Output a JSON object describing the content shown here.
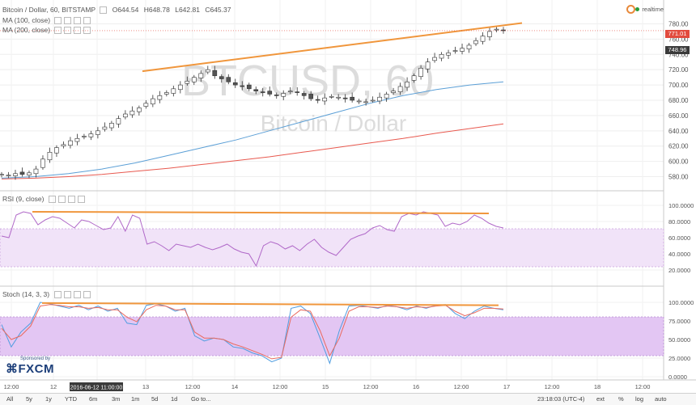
{
  "header": {
    "symbol": "Bitcoin / Dollar, 60, BITSTAMP",
    "o_label": "O",
    "o_value": "644.54",
    "h_label": "H",
    "h_value": "648.78",
    "l_label": "L",
    "l_value": "642.81",
    "c_label": "C",
    "c_value": "645.37",
    "realtime": "realtime"
  },
  "studies": {
    "ma100": "MA (100, close)",
    "ma200": "MA (200, close)",
    "rsi": "RSI (9, close)",
    "stoch": "Stoch (14, 3, 3)"
  },
  "watermark": {
    "line1": "BTCUSD, 60",
    "line2": "Bitcoin / Dollar"
  },
  "price_tags": {
    "last": "771.01",
    "ma": "748.96"
  },
  "price_axis": [
    "780.00",
    "760.00",
    "740.00",
    "720.00",
    "700.00",
    "680.00",
    "660.00",
    "640.00",
    "620.00",
    "600.00",
    "580.00"
  ],
  "rsi_axis": [
    "100.0000",
    "80.0000",
    "60.0000",
    "40.0000",
    "20.0000"
  ],
  "stoch_axis": [
    "100.0000",
    "75.0000",
    "50.0000",
    "25.0000",
    "0.0000"
  ],
  "time_axis": [
    "12:00",
    "12",
    "2016-06-12 11:00:00",
    "13",
    "12:00",
    "14",
    "12:00",
    "15",
    "12:00",
    "16",
    "12:00",
    "17",
    "12:00",
    "18",
    "12:00"
  ],
  "sponsor": {
    "line1": "Sponsored by",
    "line2": "FXCM"
  },
  "bottom": {
    "ranges": [
      "All",
      "5y",
      "1y",
      "YTD",
      "6m",
      "3m",
      "1m",
      "5d",
      "1d",
      "Go to..."
    ],
    "time": "23:18:03 (UTC-4)",
    "ext": "ext",
    "pct": "%",
    "log": "log",
    "auto": "auto"
  },
  "colors": {
    "trend": "#f0963c",
    "ma100": "#5b9fd6",
    "ma200": "#e8594f",
    "rsi": "#b068c8",
    "stoch_k": "#4f9de0",
    "stoch_d": "#ea6a5e",
    "band": "#e4c8f2",
    "up": "#2f8f63",
    "down": "#c44a3e"
  },
  "chart_data": [
    {
      "type": "candlestick",
      "title": "Bitcoin / Dollar, 60, BITSTAMP",
      "x_ticks": [
        "12:00",
        "12",
        "13",
        "12:00",
        "14",
        "12:00",
        "15",
        "12:00",
        "16",
        "12:00",
        "17",
        "12:00",
        "18",
        "12:00"
      ],
      "ylim": [
        570,
        790
      ],
      "close_path": [
        583,
        582,
        584,
        583,
        585,
        590,
        603,
        612,
        618,
        622,
        627,
        630,
        633,
        636,
        640,
        645,
        650,
        656,
        662,
        666,
        670,
        676,
        682,
        686,
        690,
        695,
        700,
        705,
        710,
        715,
        720,
        712,
        708,
        704,
        700,
        698,
        695,
        692,
        690,
        688,
        686,
        689,
        692,
        690,
        686,
        682,
        680,
        683,
        685,
        684,
        682,
        680,
        679,
        678,
        680,
        684,
        688,
        692,
        698,
        704,
        712,
        722,
        730,
        736,
        740,
        742,
        745,
        748,
        752,
        758,
        764,
        770,
        773,
        771
      ],
      "resistance_line": {
        "from": 718,
        "to": 781
      },
      "ma100_path": [
        578,
        580,
        584,
        590,
        598,
        608,
        618,
        628,
        640,
        652,
        664,
        676,
        686,
        694,
        700,
        704
      ],
      "ma200_path": [
        577,
        578,
        580,
        583,
        587,
        591,
        596,
        601,
        606,
        612,
        618,
        624,
        630,
        637,
        643,
        649
      ],
      "current_price": 771.01
    },
    {
      "type": "line",
      "title": "RSI (9, close)",
      "ylim": [
        0,
        100
      ],
      "band": [
        30,
        70
      ],
      "values": [
        62,
        60,
        88,
        92,
        90,
        76,
        82,
        86,
        84,
        78,
        72,
        82,
        80,
        75,
        70,
        72,
        86,
        68,
        88,
        84,
        52,
        55,
        50,
        44,
        52,
        50,
        48,
        52,
        48,
        45,
        48,
        52,
        46,
        42,
        40,
        25,
        50,
        55,
        52,
        46,
        50,
        44,
        52,
        58,
        48,
        42,
        38,
        48,
        58,
        62,
        65,
        72,
        75,
        70,
        68,
        86,
        90,
        88,
        92,
        90,
        88,
        74,
        78,
        76,
        80,
        88,
        84,
        78,
        74,
        72
      ]
    },
    {
      "type": "line",
      "title": "Stoch (14, 3, 3)",
      "ylim": [
        0,
        100
      ],
      "band": [
        20,
        80
      ],
      "series": [
        {
          "name": "%K",
          "values": [
            70,
            40,
            60,
            72,
            100,
            98,
            95,
            92,
            96,
            90,
            95,
            88,
            92,
            72,
            70,
            96,
            98,
            95,
            88,
            92,
            55,
            48,
            52,
            50,
            40,
            38,
            32,
            28,
            20,
            25,
            92,
            95,
            85,
            52,
            18,
            62,
            95,
            96,
            94,
            92,
            96,
            94,
            90,
            95,
            92,
            96,
            97,
            85,
            78,
            88,
            95,
            92,
            90
          ]
        },
        {
          "name": "%D",
          "values": [
            65,
            50,
            55,
            68,
            95,
            97,
            96,
            94,
            94,
            92,
            93,
            90,
            90,
            80,
            74,
            90,
            96,
            95,
            90,
            90,
            60,
            52,
            52,
            50,
            44,
            40,
            35,
            30,
            24,
            26,
            80,
            90,
            88,
            62,
            28,
            52,
            88,
            94,
            94,
            93,
            95,
            94,
            92,
            94,
            93,
            95,
            96,
            88,
            82,
            86,
            92,
            92,
            91
          ]
        }
      ],
      "resistance_line": {
        "from": 99,
        "to": 96
      }
    }
  ]
}
